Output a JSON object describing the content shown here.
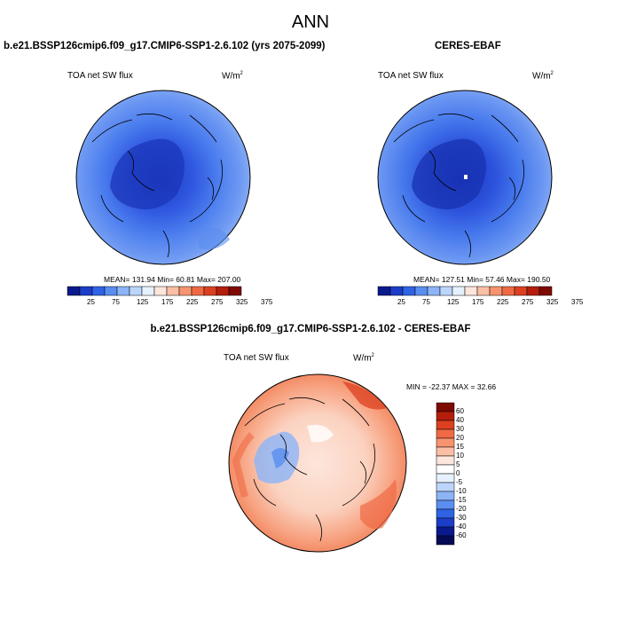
{
  "title": "ANN",
  "panels": [
    {
      "id": "model",
      "title": "b.e21.BSSP126cmip6.f09_g17.CMIP6-SSP1-2.6.102 (yrs 2075-2099)",
      "variable": "TOA net SW flux",
      "units_base": "W/m",
      "units_exp": "2",
      "stats": "MEAN= 131.94  Min=  60.81  Max= 207.00"
    },
    {
      "id": "obs",
      "title": "CERES-EBAF",
      "variable": "TOA net SW flux",
      "units_base": "W/m",
      "units_exp": "2",
      "stats": "MEAN= 127.51  Min=  57.46  Max= 190.50"
    },
    {
      "id": "diff",
      "title": "b.e21.BSSP126cmip6.f09_g17.CMIP6-SSP1-2.6.102 - CERES-EBAF",
      "variable": "TOA net SW flux",
      "units_base": "W/m",
      "units_exp": "2",
      "stats": "MIN = -22.37 MAX =  32.66"
    }
  ],
  "chart_data": [
    {
      "type": "heatmap",
      "name": "model",
      "projection": "north polar stereographic",
      "colorbar_orientation": "horizontal",
      "colorbar_labels": [
        "25",
        "75",
        "125",
        "175",
        "225",
        "275",
        "325",
        "375"
      ],
      "colorbar_colors": [
        "#0a1a8c",
        "#1c3dc8",
        "#2f63e6",
        "#5a8ef0",
        "#8cb4f7",
        "#bcd6fb",
        "#e6f1fd",
        "#fde6dc",
        "#fbbfa6",
        "#f7946f",
        "#ef6a44",
        "#dc4020",
        "#b51e0c",
        "#7e0a04"
      ],
      "mean": 131.94,
      "min": 60.81,
      "max": 207.0
    },
    {
      "type": "heatmap",
      "name": "obs",
      "projection": "north polar stereographic",
      "colorbar_orientation": "horizontal",
      "colorbar_labels": [
        "25",
        "75",
        "125",
        "175",
        "225",
        "275",
        "325",
        "375"
      ],
      "colorbar_colors": [
        "#0a1a8c",
        "#1c3dc8",
        "#2f63e6",
        "#5a8ef0",
        "#8cb4f7",
        "#bcd6fb",
        "#e6f1fd",
        "#fde6dc",
        "#fbbfa6",
        "#f7946f",
        "#ef6a44",
        "#dc4020",
        "#b51e0c",
        "#7e0a04"
      ],
      "mean": 127.51,
      "min": 57.46,
      "max": 190.5
    },
    {
      "type": "heatmap",
      "name": "difference",
      "projection": "north polar stereographic",
      "colorbar_orientation": "vertical",
      "colorbar_labels": [
        "60",
        "40",
        "30",
        "20",
        "15",
        "10",
        "5",
        "0",
        "-5",
        "-10",
        "-15",
        "-20",
        "-30",
        "-40",
        "-60"
      ],
      "colorbar_colors": [
        "#7e0a04",
        "#b51e0c",
        "#dc4020",
        "#ef6a44",
        "#f7946f",
        "#fbbfa6",
        "#fde6dc",
        "#ffffff",
        "#e6f1fd",
        "#bcd6fb",
        "#8cb4f7",
        "#5a8ef0",
        "#2f63e6",
        "#1c3dc8",
        "#0a1a8c",
        "#050a55"
      ],
      "min": -22.37,
      "max": 32.66
    }
  ]
}
